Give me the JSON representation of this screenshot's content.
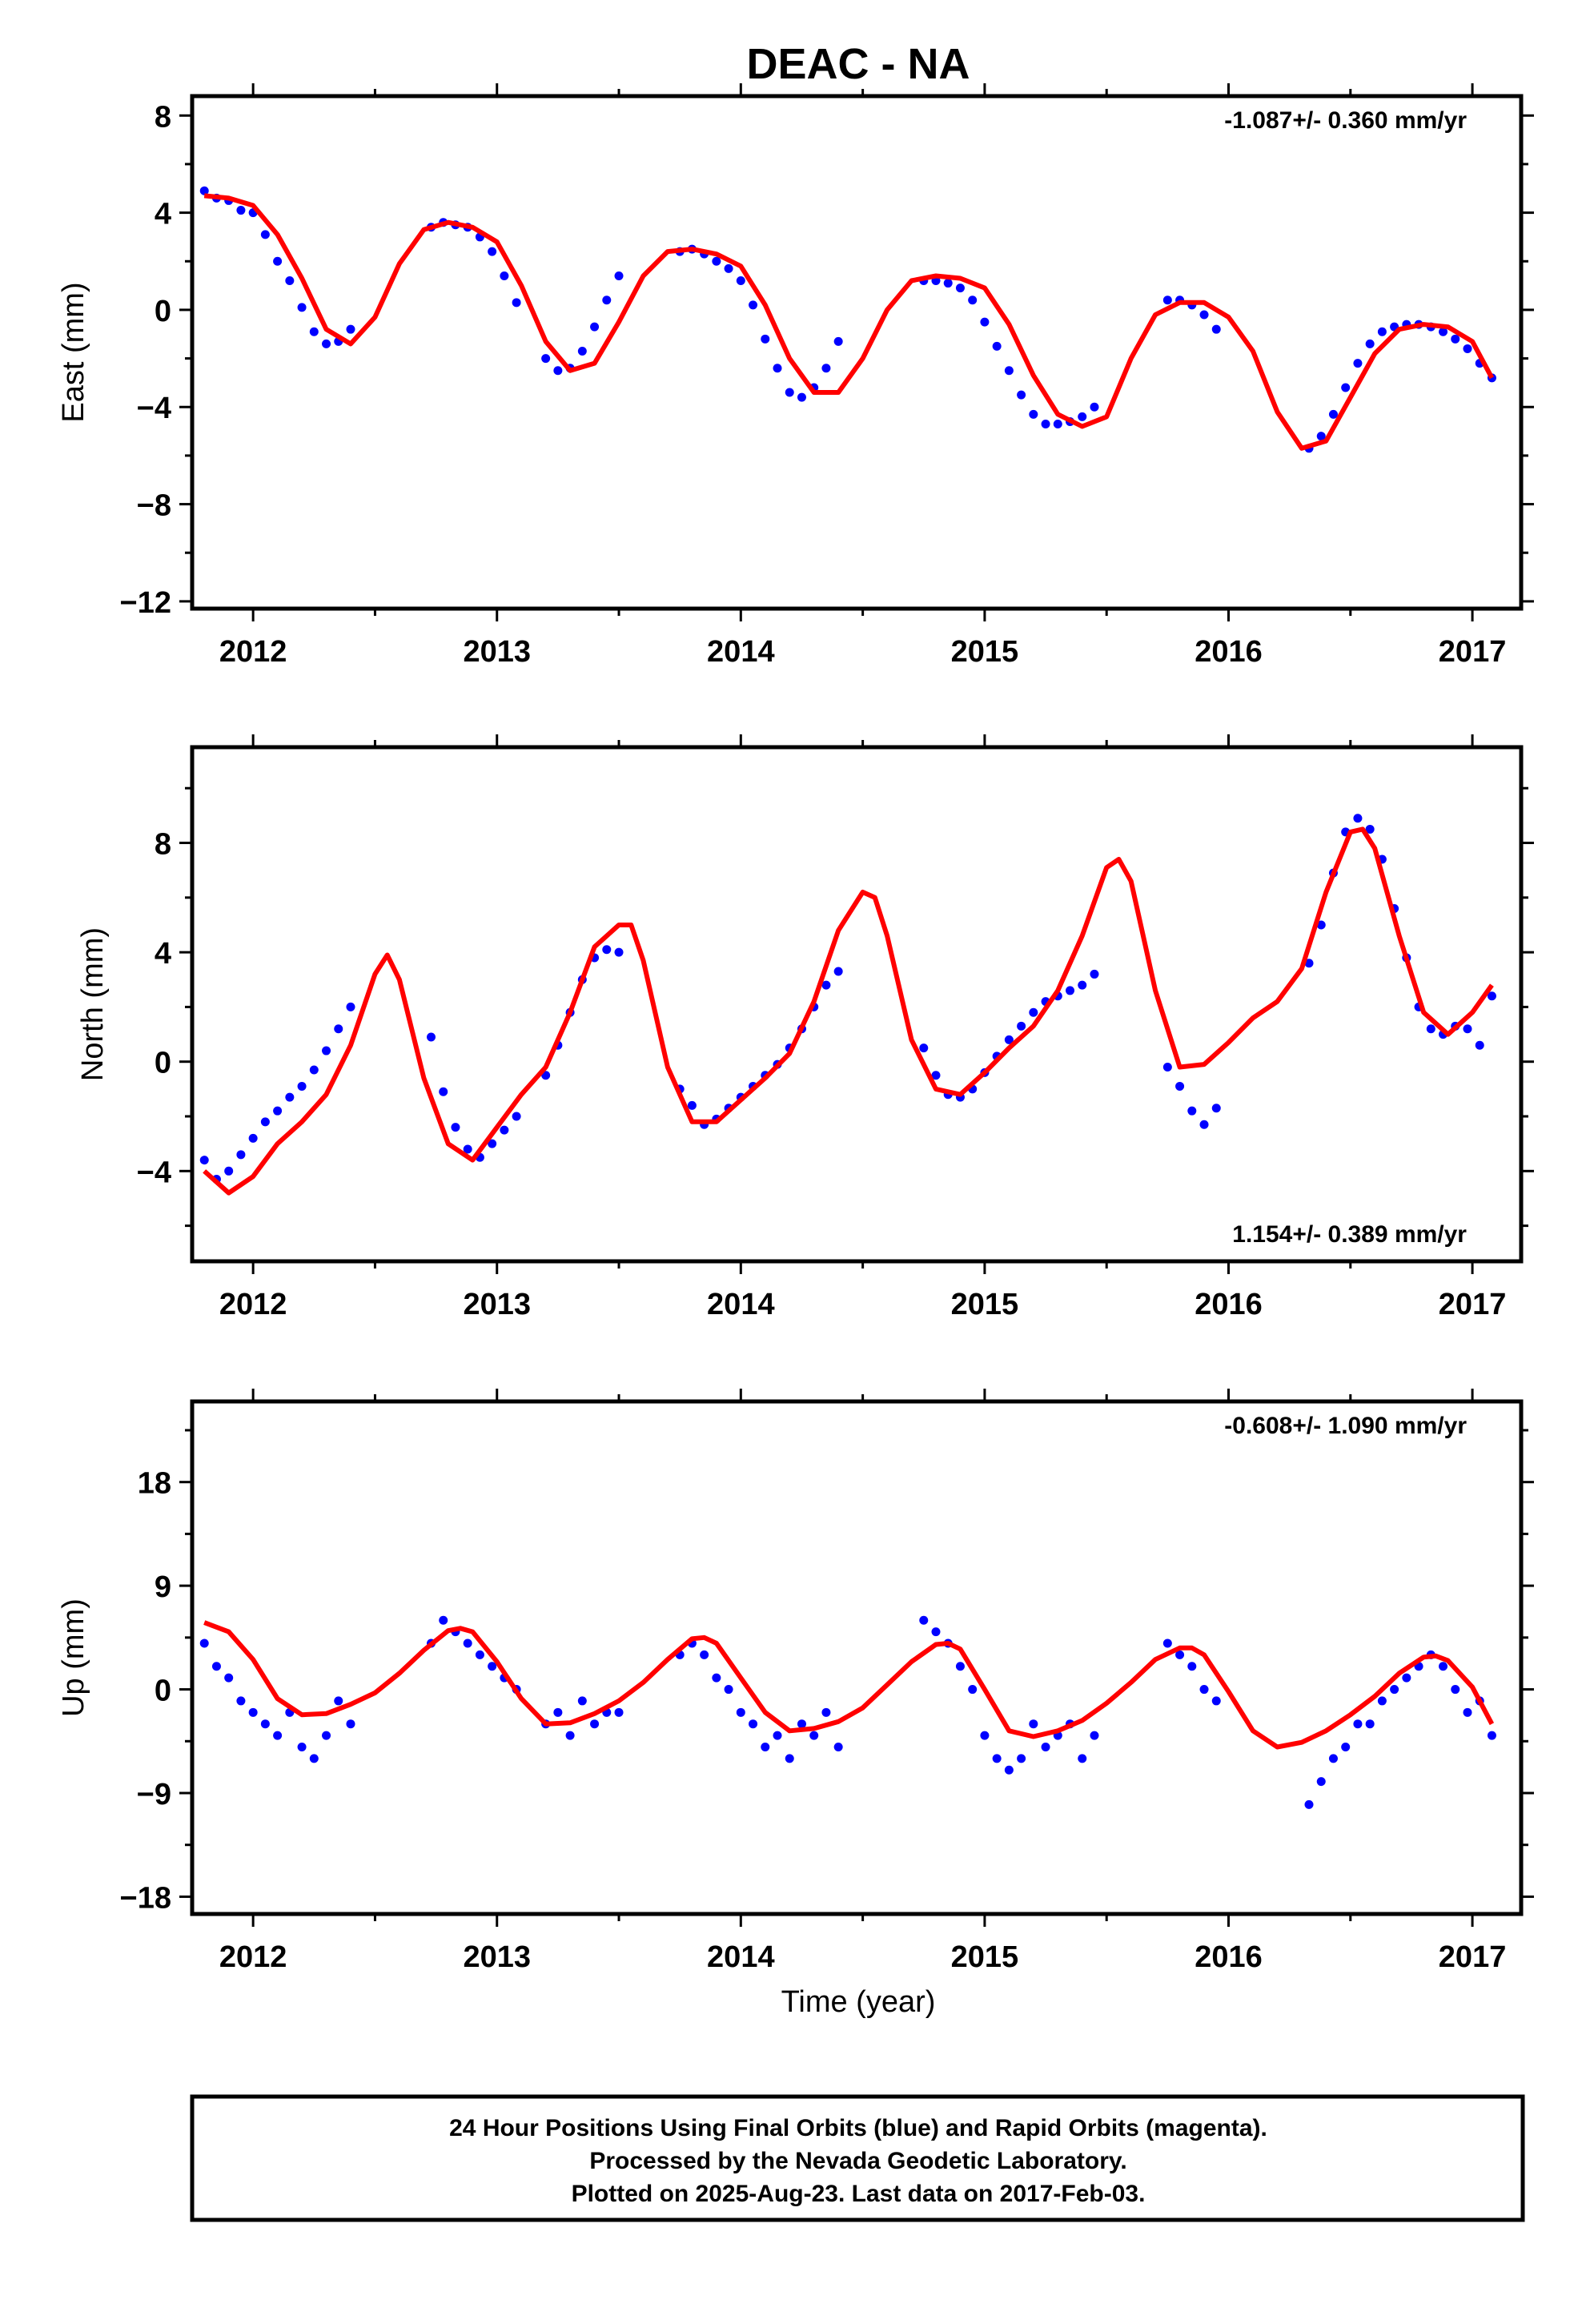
{
  "chart_data": [
    {
      "type": "scatter",
      "title": "DEAC - NA",
      "xlabel": "",
      "ylabel": "East (mm)",
      "xlim": [
        2011.75,
        2017.2
      ],
      "ylim": [
        -12.3,
        8.8
      ],
      "x_ticks": [
        2012,
        2013,
        2014,
        2015,
        2016,
        2017
      ],
      "x_tick_labels": [
        "2012",
        "2013",
        "2014",
        "2015",
        "2016",
        "2017"
      ],
      "y_ticks": [
        -12,
        -8,
        -4,
        0,
        4,
        8
      ],
      "y_tick_labels": [
        "−12",
        "−8",
        "−4",
        "0",
        "4",
        "8"
      ],
      "annotation": "-1.087+/- 0.360 mm/yr",
      "annotation_position": "top-right",
      "grid": false,
      "series": [
        {
          "kind": "points",
          "color": "#0000ff",
          "x": [
            2011.8,
            2011.85,
            2011.9,
            2011.95,
            2012.0,
            2012.05,
            2012.1,
            2012.15,
            2012.2,
            2012.25,
            2012.3,
            2012.35,
            2012.4,
            2012.73,
            2012.78,
            2012.83,
            2012.88,
            2012.93,
            2012.98,
            2013.03,
            2013.08,
            2013.2,
            2013.25,
            2013.3,
            2013.35,
            2013.4,
            2013.45,
            2013.5,
            2013.75,
            2013.8,
            2013.85,
            2013.9,
            2013.95,
            2014.0,
            2014.05,
            2014.1,
            2014.15,
            2014.2,
            2014.25,
            2014.3,
            2014.35,
            2014.4,
            2014.75,
            2014.8,
            2014.85,
            2014.9,
            2014.95,
            2015.0,
            2015.05,
            2015.1,
            2015.15,
            2015.2,
            2015.25,
            2015.3,
            2015.35,
            2015.4,
            2015.45,
            2015.75,
            2015.8,
            2015.85,
            2015.9,
            2015.95,
            2016.33,
            2016.38,
            2016.43,
            2016.48,
            2016.53,
            2016.58,
            2016.63,
            2016.68,
            2016.73,
            2016.78,
            2016.83,
            2016.88,
            2016.93,
            2016.98,
            2017.03,
            2017.08
          ],
          "y": [
            4.9,
            4.6,
            4.5,
            4.1,
            4.0,
            3.1,
            2.0,
            1.2,
            0.1,
            -0.9,
            -1.4,
            -1.3,
            -0.8,
            3.4,
            3.6,
            3.5,
            3.4,
            3.0,
            2.4,
            1.4,
            0.3,
            -2.0,
            -2.5,
            -2.4,
            -1.7,
            -0.7,
            0.4,
            1.4,
            2.4,
            2.5,
            2.3,
            2.0,
            1.7,
            1.2,
            0.2,
            -1.2,
            -2.4,
            -3.4,
            -3.6,
            -3.2,
            -2.4,
            -1.3,
            1.2,
            1.2,
            1.1,
            0.9,
            0.4,
            -0.5,
            -1.5,
            -2.5,
            -3.5,
            -4.3,
            -4.7,
            -4.7,
            -4.6,
            -4.4,
            -4.0,
            0.4,
            0.4,
            0.2,
            -0.2,
            -0.8,
            -5.7,
            -5.2,
            -4.3,
            -3.2,
            -2.2,
            -1.4,
            -0.9,
            -0.7,
            -0.6,
            -0.6,
            -0.7,
            -0.9,
            -1.2,
            -1.6,
            -2.2,
            -2.8
          ]
        },
        {
          "kind": "fit",
          "color": "#ff0000",
          "x": [
            2011.8,
            2011.9,
            2012.0,
            2012.1,
            2012.2,
            2012.3,
            2012.4,
            2012.5,
            2012.6,
            2012.7,
            2012.8,
            2012.9,
            2013.0,
            2013.1,
            2013.2,
            2013.3,
            2013.4,
            2013.5,
            2013.6,
            2013.7,
            2013.8,
            2013.9,
            2014.0,
            2014.1,
            2014.2,
            2014.3,
            2014.4,
            2014.5,
            2014.6,
            2014.7,
            2014.8,
            2014.9,
            2015.0,
            2015.1,
            2015.2,
            2015.3,
            2015.4,
            2015.5,
            2015.6,
            2015.7,
            2015.8,
            2015.9,
            2016.0,
            2016.1,
            2016.2,
            2016.3,
            2016.4,
            2016.5,
            2016.6,
            2016.7,
            2016.8,
            2016.9,
            2017.0,
            2017.08
          ],
          "y": [
            4.7,
            4.6,
            4.3,
            3.1,
            1.3,
            -0.8,
            -1.4,
            -0.3,
            1.9,
            3.3,
            3.6,
            3.4,
            2.8,
            1.0,
            -1.3,
            -2.5,
            -2.2,
            -0.5,
            1.4,
            2.4,
            2.5,
            2.3,
            1.8,
            0.2,
            -2.0,
            -3.4,
            -3.4,
            -2.0,
            0.0,
            1.2,
            1.4,
            1.3,
            0.9,
            -0.6,
            -2.7,
            -4.3,
            -4.8,
            -4.4,
            -2.0,
            -0.2,
            0.3,
            0.3,
            -0.3,
            -1.7,
            -4.2,
            -5.7,
            -5.4,
            -3.6,
            -1.8,
            -0.8,
            -0.6,
            -0.7,
            -1.3,
            -2.8
          ]
        }
      ]
    },
    {
      "type": "scatter",
      "title": "",
      "xlabel": "",
      "ylabel": "North (mm)",
      "xlim": [
        2011.75,
        2017.2
      ],
      "ylim": [
        -7.3,
        11.5
      ],
      "x_ticks": [
        2012,
        2013,
        2014,
        2015,
        2016,
        2017
      ],
      "x_tick_labels": [
        "2012",
        "2013",
        "2014",
        "2015",
        "2016",
        "2017"
      ],
      "y_ticks": [
        -4,
        0,
        4,
        8
      ],
      "y_tick_labels": [
        "−4",
        "0",
        "4",
        "8"
      ],
      "annotation": "1.154+/- 0.389 mm/yr",
      "annotation_position": "bottom-right",
      "grid": false,
      "series": [
        {
          "kind": "points",
          "color": "#0000ff",
          "x": [
            2011.8,
            2011.85,
            2011.9,
            2011.95,
            2012.0,
            2012.05,
            2012.1,
            2012.15,
            2012.2,
            2012.25,
            2012.3,
            2012.35,
            2012.4,
            2012.73,
            2012.78,
            2012.83,
            2012.88,
            2012.93,
            2012.98,
            2013.03,
            2013.08,
            2013.2,
            2013.25,
            2013.3,
            2013.35,
            2013.4,
            2013.45,
            2013.5,
            2013.75,
            2013.8,
            2013.85,
            2013.9,
            2013.95,
            2014.0,
            2014.05,
            2014.1,
            2014.15,
            2014.2,
            2014.25,
            2014.3,
            2014.35,
            2014.4,
            2014.75,
            2014.8,
            2014.85,
            2014.9,
            2014.95,
            2015.0,
            2015.05,
            2015.1,
            2015.15,
            2015.2,
            2015.25,
            2015.3,
            2015.35,
            2015.4,
            2015.45,
            2015.75,
            2015.8,
            2015.85,
            2015.9,
            2015.95,
            2016.33,
            2016.38,
            2016.43,
            2016.48,
            2016.53,
            2016.58,
            2016.63,
            2016.68,
            2016.73,
            2016.78,
            2016.83,
            2016.88,
            2016.93,
            2016.98,
            2017.03,
            2017.08
          ],
          "y": [
            -3.6,
            -4.3,
            -4.0,
            -3.4,
            -2.8,
            -2.2,
            -1.8,
            -1.3,
            -0.9,
            -0.3,
            0.4,
            1.2,
            2.0,
            0.9,
            -1.1,
            -2.4,
            -3.2,
            -3.5,
            -3.0,
            -2.5,
            -2.0,
            -0.5,
            0.6,
            1.8,
            3.0,
            3.8,
            4.1,
            4.0,
            -1.0,
            -1.6,
            -2.3,
            -2.1,
            -1.7,
            -1.3,
            -0.9,
            -0.5,
            -0.1,
            0.5,
            1.2,
            2.0,
            2.8,
            3.3,
            0.5,
            -0.5,
            -1.2,
            -1.3,
            -1.0,
            -0.4,
            0.2,
            0.8,
            1.3,
            1.8,
            2.2,
            2.4,
            2.6,
            2.8,
            3.2,
            -0.2,
            -0.9,
            -1.8,
            -2.3,
            -1.7,
            3.6,
            5.0,
            6.9,
            8.4,
            8.9,
            8.5,
            7.4,
            5.6,
            3.8,
            2.0,
            1.2,
            1.0,
            1.3,
            1.2,
            0.6,
            2.4
          ]
        },
        {
          "kind": "fit",
          "color": "#ff0000",
          "x": [
            2011.8,
            2011.9,
            2012.0,
            2012.1,
            2012.2,
            2012.3,
            2012.4,
            2012.5,
            2012.55,
            2012.6,
            2012.7,
            2012.8,
            2012.9,
            2013.0,
            2013.1,
            2013.2,
            2013.3,
            2013.4,
            2013.5,
            2013.55,
            2013.6,
            2013.7,
            2013.8,
            2013.9,
            2014.0,
            2014.1,
            2014.2,
            2014.3,
            2014.4,
            2014.5,
            2014.55,
            2014.6,
            2014.7,
            2014.8,
            2014.9,
            2015.0,
            2015.1,
            2015.2,
            2015.3,
            2015.4,
            2015.5,
            2015.55,
            2015.6,
            2015.7,
            2015.8,
            2015.9,
            2016.0,
            2016.1,
            2016.2,
            2016.3,
            2016.4,
            2016.5,
            2016.55,
            2016.6,
            2016.7,
            2016.8,
            2016.9,
            2017.0,
            2017.08
          ],
          "y": [
            -4.0,
            -4.8,
            -4.2,
            -3.0,
            -2.2,
            -1.2,
            0.6,
            3.2,
            3.9,
            3.0,
            -0.6,
            -3.0,
            -3.6,
            -2.4,
            -1.2,
            -0.2,
            1.8,
            4.2,
            5.0,
            5.0,
            3.7,
            -0.2,
            -2.2,
            -2.2,
            -1.4,
            -0.6,
            0.3,
            2.2,
            4.8,
            6.2,
            6.0,
            4.6,
            0.8,
            -1.0,
            -1.2,
            -0.4,
            0.5,
            1.3,
            2.6,
            4.6,
            7.1,
            7.4,
            6.6,
            2.6,
            -0.2,
            -0.1,
            0.7,
            1.6,
            2.2,
            3.4,
            6.2,
            8.4,
            8.5,
            7.8,
            4.6,
            1.8,
            1.0,
            1.8,
            2.8
          ]
        }
      ]
    },
    {
      "type": "scatter",
      "title": "",
      "xlabel": "Time (year)",
      "ylabel": "Up (mm)",
      "xlim": [
        2011.75,
        2017.2
      ],
      "ylim": [
        -19.5,
        25.0
      ],
      "x_ticks": [
        2012,
        2013,
        2014,
        2015,
        2016,
        2017
      ],
      "x_tick_labels": [
        "2012",
        "2013",
        "2014",
        "2015",
        "2016",
        "2017"
      ],
      "y_ticks": [
        -18,
        -9,
        0,
        9,
        18
      ],
      "y_tick_labels": [
        "−18",
        "−9",
        "0",
        "9",
        "18"
      ],
      "annotation": "-0.608+/- 1.090 mm/yr",
      "annotation_position": "top-right",
      "grid": false,
      "series": [
        {
          "kind": "points",
          "color": "#0000ff",
          "x": [
            2011.8,
            2011.85,
            2011.9,
            2011.95,
            2012.0,
            2012.05,
            2012.1,
            2012.15,
            2012.2,
            2012.25,
            2012.3,
            2012.35,
            2012.4,
            2012.73,
            2012.78,
            2012.83,
            2012.88,
            2012.93,
            2012.98,
            2013.03,
            2013.08,
            2013.2,
            2013.25,
            2013.3,
            2013.35,
            2013.4,
            2013.45,
            2013.5,
            2013.75,
            2013.8,
            2013.85,
            2013.9,
            2013.95,
            2014.0,
            2014.05,
            2014.1,
            2014.15,
            2014.2,
            2014.25,
            2014.3,
            2014.35,
            2014.4,
            2014.75,
            2014.8,
            2014.85,
            2014.9,
            2014.95,
            2015.0,
            2015.05,
            2015.1,
            2015.15,
            2015.2,
            2015.25,
            2015.3,
            2015.35,
            2015.4,
            2015.45,
            2015.75,
            2015.8,
            2015.85,
            2015.9,
            2015.95,
            2016.33,
            2016.38,
            2016.43,
            2016.48,
            2016.53,
            2016.58,
            2016.63,
            2016.68,
            2016.73,
            2016.78,
            2016.83,
            2016.88,
            2016.93,
            2016.98,
            2017.03,
            2017.08
          ],
          "y": [
            4.0,
            2.0,
            1.0,
            -1.0,
            -2.0,
            -3.0,
            -4.0,
            -2.0,
            -5.0,
            -6.0,
            -4.0,
            -1.0,
            -3.0,
            4.0,
            6.0,
            5.0,
            4.0,
            3.0,
            2.0,
            1.0,
            0.0,
            -3.0,
            -2.0,
            -4.0,
            -1.0,
            -3.0,
            -2.0,
            -2.0,
            3.0,
            4.0,
            3.0,
            1.0,
            0.0,
            -2.0,
            -3.0,
            -5.0,
            -4.0,
            -6.0,
            -3.0,
            -4.0,
            -2.0,
            -5.0,
            6.0,
            5.0,
            4.0,
            2.0,
            0.0,
            -4.0,
            -6.0,
            -7.0,
            -6.0,
            -3.0,
            -5.0,
            -4.0,
            -3.0,
            -6.0,
            -4.0,
            4.0,
            3.0,
            2.0,
            0.0,
            -1.0,
            -10.0,
            -8.0,
            -6.0,
            -5.0,
            -3.0,
            -3.0,
            -1.0,
            0.0,
            1.0,
            2.0,
            3.0,
            2.0,
            0.0,
            -2.0,
            -1.0,
            -4.0
          ]
        },
        {
          "kind": "fit",
          "color": "#ff0000",
          "x": [
            2011.8,
            2011.9,
            2012.0,
            2012.1,
            2012.2,
            2012.3,
            2012.4,
            2012.5,
            2012.6,
            2012.7,
            2012.8,
            2012.85,
            2012.9,
            2013.0,
            2013.1,
            2013.2,
            2013.3,
            2013.4,
            2013.5,
            2013.6,
            2013.7,
            2013.8,
            2013.85,
            2013.9,
            2014.0,
            2014.1,
            2014.2,
            2014.3,
            2014.4,
            2014.5,
            2014.6,
            2014.7,
            2014.8,
            2014.85,
            2014.9,
            2015.0,
            2015.1,
            2015.2,
            2015.3,
            2015.4,
            2015.5,
            2015.6,
            2015.7,
            2015.8,
            2015.85,
            2015.9,
            2016.0,
            2016.1,
            2016.2,
            2016.3,
            2016.4,
            2016.5,
            2016.6,
            2016.7,
            2016.8,
            2016.85,
            2016.9,
            2017.0,
            2017.08
          ],
          "y": [
            5.8,
            5.0,
            2.6,
            -0.8,
            -2.2,
            -2.1,
            -1.3,
            -0.3,
            1.4,
            3.4,
            5.1,
            5.3,
            5.0,
            2.4,
            -0.8,
            -3.0,
            -2.9,
            -2.1,
            -1.0,
            0.6,
            2.6,
            4.4,
            4.5,
            4.0,
            1.0,
            -2.0,
            -3.6,
            -3.4,
            -2.8,
            -1.6,
            0.4,
            2.4,
            3.9,
            4.0,
            3.5,
            0.0,
            -3.6,
            -4.1,
            -3.6,
            -2.7,
            -1.2,
            0.6,
            2.6,
            3.6,
            3.6,
            3.0,
            -0.2,
            -3.6,
            -5.0,
            -4.6,
            -3.6,
            -2.2,
            -0.6,
            1.4,
            2.8,
            2.9,
            2.5,
            0.2,
            -3.0
          ]
        }
      ]
    }
  ],
  "footer": {
    "line1": "24 Hour Positions Using Final Orbits (blue) and Rapid Orbits (magenta).",
    "line2": "Processed by the Nevada Geodetic Laboratory.",
    "line3": "Plotted on 2025-Aug-23. Last data on 2017-Feb-03."
  },
  "colors": {
    "points": "#0000ff",
    "fit": "#ff0000",
    "frame": "#000000"
  }
}
